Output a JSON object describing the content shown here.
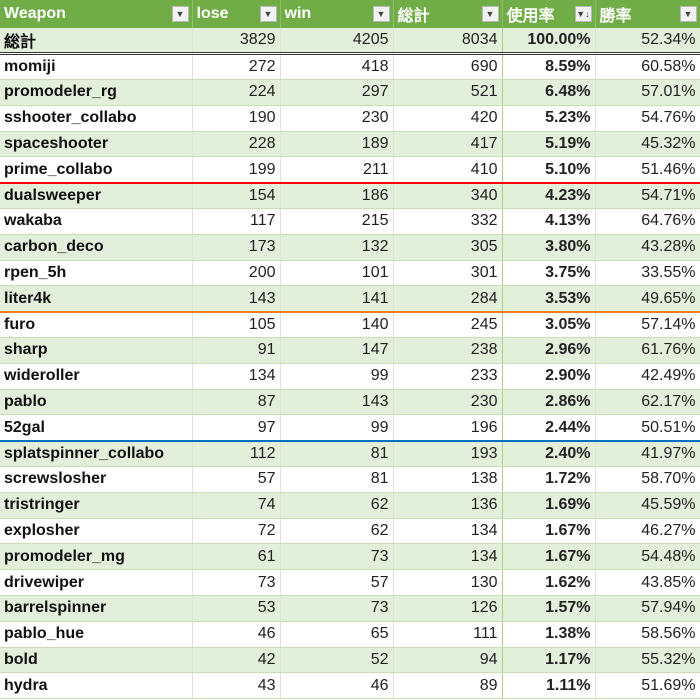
{
  "headers": [
    "Weapon",
    "lose",
    "win",
    "総計",
    "使用率",
    "勝率"
  ],
  "sort_column": "使用率",
  "sort_direction": "descending",
  "colors": {
    "header": "#70AD47",
    "band": "#E2EFDA",
    "sep_red": "#FF0000",
    "sep_orange": "#ED7D31",
    "sep_blue": "#0070C0"
  },
  "total": {
    "name": "総計",
    "lose": "3829",
    "win": "4205",
    "total": "8034",
    "usage": "100.00%",
    "winrate": "52.34%"
  },
  "rows": [
    {
      "name": "momiji",
      "lose": "272",
      "win": "418",
      "total": "690",
      "usage": "8.59%",
      "winrate": "60.58%"
    },
    {
      "name": "promodeler_rg",
      "lose": "224",
      "win": "297",
      "total": "521",
      "usage": "6.48%",
      "winrate": "57.01%"
    },
    {
      "name": "sshooter_collabo",
      "lose": "190",
      "win": "230",
      "total": "420",
      "usage": "5.23%",
      "winrate": "54.76%"
    },
    {
      "name": "spaceshooter",
      "lose": "228",
      "win": "189",
      "total": "417",
      "usage": "5.19%",
      "winrate": "45.32%"
    },
    {
      "name": "prime_collabo",
      "lose": "199",
      "win": "211",
      "total": "410",
      "usage": "5.10%",
      "winrate": "51.46%",
      "sep": "red"
    },
    {
      "name": "dualsweeper",
      "lose": "154",
      "win": "186",
      "total": "340",
      "usage": "4.23%",
      "winrate": "54.71%"
    },
    {
      "name": "wakaba",
      "lose": "117",
      "win": "215",
      "total": "332",
      "usage": "4.13%",
      "winrate": "64.76%"
    },
    {
      "name": "carbon_deco",
      "lose": "173",
      "win": "132",
      "total": "305",
      "usage": "3.80%",
      "winrate": "43.28%"
    },
    {
      "name": "rpen_5h",
      "lose": "200",
      "win": "101",
      "total": "301",
      "usage": "3.75%",
      "winrate": "33.55%"
    },
    {
      "name": "liter4k",
      "lose": "143",
      "win": "141",
      "total": "284",
      "usage": "3.53%",
      "winrate": "49.65%",
      "sep": "orange"
    },
    {
      "name": "furo",
      "lose": "105",
      "win": "140",
      "total": "245",
      "usage": "3.05%",
      "winrate": "57.14%"
    },
    {
      "name": "sharp",
      "lose": "91",
      "win": "147",
      "total": "238",
      "usage": "2.96%",
      "winrate": "61.76%"
    },
    {
      "name": "wideroller",
      "lose": "134",
      "win": "99",
      "total": "233",
      "usage": "2.90%",
      "winrate": "42.49%"
    },
    {
      "name": "pablo",
      "lose": "87",
      "win": "143",
      "total": "230",
      "usage": "2.86%",
      "winrate": "62.17%"
    },
    {
      "name": "52gal",
      "lose": "97",
      "win": "99",
      "total": "196",
      "usage": "2.44%",
      "winrate": "50.51%",
      "sep": "blue"
    },
    {
      "name": "splatspinner_collabo",
      "lose": "112",
      "win": "81",
      "total": "193",
      "usage": "2.40%",
      "winrate": "41.97%"
    },
    {
      "name": "screwslosher",
      "lose": "57",
      "win": "81",
      "total": "138",
      "usage": "1.72%",
      "winrate": "58.70%"
    },
    {
      "name": "tristringer",
      "lose": "74",
      "win": "62",
      "total": "136",
      "usage": "1.69%",
      "winrate": "45.59%"
    },
    {
      "name": "explosher",
      "lose": "72",
      "win": "62",
      "total": "134",
      "usage": "1.67%",
      "winrate": "46.27%"
    },
    {
      "name": "promodeler_mg",
      "lose": "61",
      "win": "73",
      "total": "134",
      "usage": "1.67%",
      "winrate": "54.48%"
    },
    {
      "name": "drivewiper",
      "lose": "73",
      "win": "57",
      "total": "130",
      "usage": "1.62%",
      "winrate": "43.85%"
    },
    {
      "name": "barrelspinner",
      "lose": "53",
      "win": "73",
      "total": "126",
      "usage": "1.57%",
      "winrate": "57.94%"
    },
    {
      "name": "pablo_hue",
      "lose": "46",
      "win": "65",
      "total": "111",
      "usage": "1.38%",
      "winrate": "58.56%"
    },
    {
      "name": "bold",
      "lose": "42",
      "win": "52",
      "total": "94",
      "usage": "1.17%",
      "winrate": "55.32%"
    },
    {
      "name": "hydra",
      "lose": "43",
      "win": "46",
      "total": "89",
      "usage": "1.11%",
      "winrate": "51.69%"
    }
  ]
}
